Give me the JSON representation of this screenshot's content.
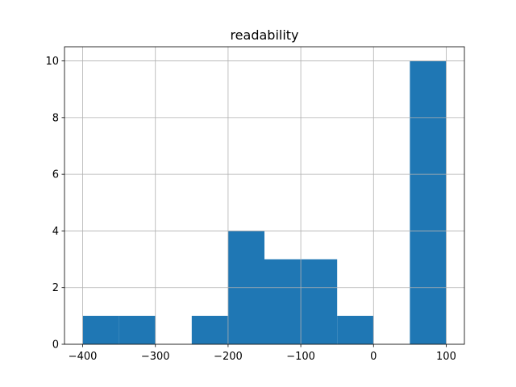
{
  "chart_data": {
    "type": "histogram",
    "title": "readability",
    "bins": [
      -400,
      -350,
      -300,
      -250,
      -200,
      -150,
      -100,
      -50,
      0,
      50,
      100
    ],
    "counts": [
      1,
      1,
      0,
      1,
      4,
      3,
      3,
      1,
      0,
      10
    ],
    "color": "#1f77b4",
    "xlim": [
      -425,
      125
    ],
    "xticks": [
      {
        "value": -400,
        "label": "−400"
      },
      {
        "value": -300,
        "label": "−300"
      },
      {
        "value": -200,
        "label": "−200"
      },
      {
        "value": -100,
        "label": "−100"
      },
      0,
      100
    ],
    "ylim": [
      0,
      10.5
    ],
    "yticks": [
      0,
      2,
      4,
      6,
      8,
      10
    ],
    "grid": true
  }
}
